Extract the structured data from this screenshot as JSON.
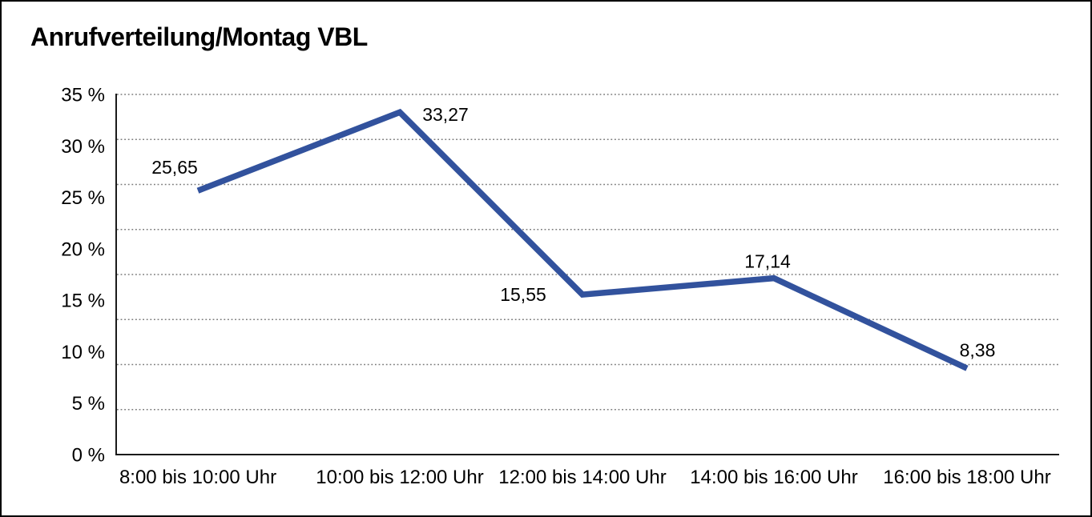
{
  "title": "Anrufverteilung/Montag VBL",
  "chart_data": {
    "type": "line",
    "title": "Anrufverteilung/Montag VBL",
    "categories": [
      "8:00 bis 10:00 Uhr",
      "10:00 bis 12:00 Uhr",
      "12:00 bis 14:00 Uhr",
      "14:00 bis 16:00 Uhr",
      "16:00 bis 18:00 Uhr"
    ],
    "values": [
      25.65,
      33.27,
      15.55,
      17.14,
      8.38
    ],
    "data_labels": [
      "25,65",
      "33,27",
      "15,55",
      "17,14",
      "8,38"
    ],
    "yticks": [
      {
        "value": 0,
        "label": "0 %"
      },
      {
        "value": 5,
        "label": "5 %"
      },
      {
        "value": 10,
        "label": "10 %"
      },
      {
        "value": 15,
        "label": "15 %"
      },
      {
        "value": 20,
        "label": "20 %"
      },
      {
        "value": 25,
        "label": "25 %"
      },
      {
        "value": 30,
        "label": "30 %"
      },
      {
        "value": 35,
        "label": "35 %"
      }
    ],
    "ylim": [
      0,
      35
    ],
    "xlabel": "",
    "ylabel": "",
    "grid_divisions": 8,
    "grid_style": "dotted",
    "legend": "none",
    "colors": {
      "line": "#32529D",
      "grid": "#7a7a7a",
      "axis": "#1a1a1a",
      "text": "#000000",
      "background": "#ffffff",
      "border": "#000000"
    }
  }
}
